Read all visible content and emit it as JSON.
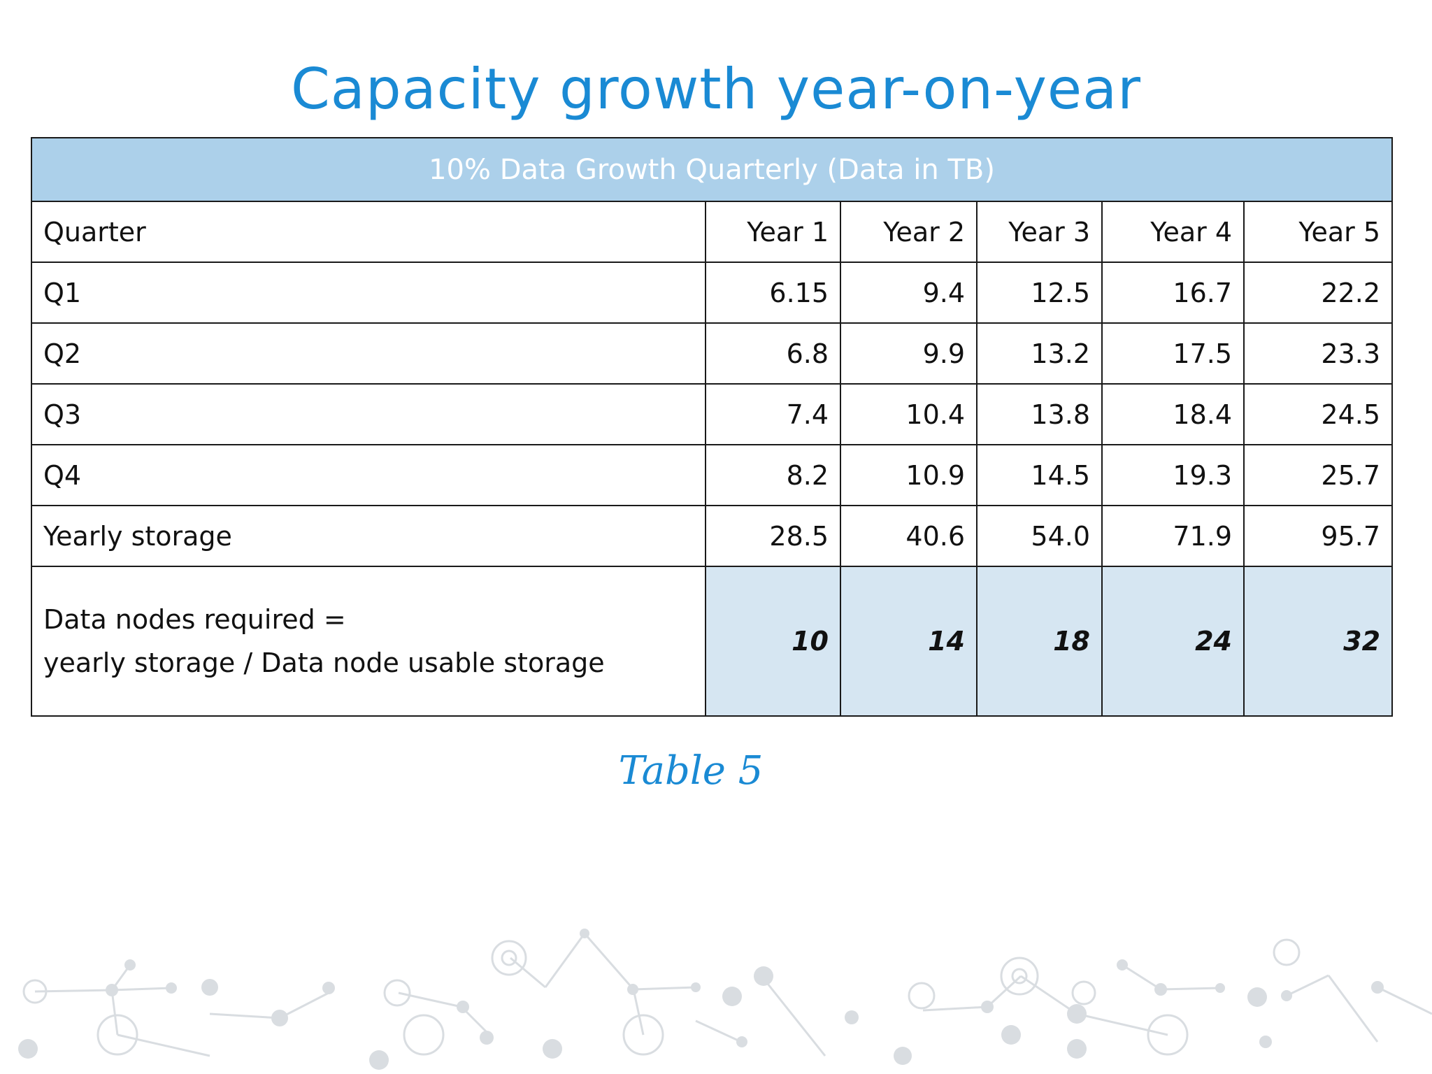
{
  "title": "Capacity growth year-on-year",
  "table": {
    "banner": "10% Data Growth Quarterly (Data in TB)",
    "header": [
      "Quarter",
      "Year 1",
      "Year 2",
      "Year 3",
      "Year 4",
      "Year 5"
    ],
    "rows": [
      {
        "label": "Q1",
        "values": [
          "6.15",
          "9.4",
          "12.5",
          "16.7",
          "22.2"
        ]
      },
      {
        "label": "Q2",
        "values": [
          "6.8",
          "9.9",
          "13.2",
          "17.5",
          "23.3"
        ]
      },
      {
        "label": "Q3",
        "values": [
          "7.4",
          "10.4",
          "13.8",
          "18.4",
          "24.5"
        ]
      },
      {
        "label": "Q4",
        "values": [
          "8.2",
          "10.9",
          "14.5",
          "19.3",
          "25.7"
        ]
      },
      {
        "label": "Yearly storage",
        "values": [
          "28.5",
          "40.6",
          "54.0",
          "71.9",
          "95.7"
        ]
      }
    ],
    "nodes_row": {
      "label_line1": "Data nodes required =",
      "label_line2": "yearly storage / Data node usable storage",
      "values": [
        "10",
        "14",
        "18",
        "24",
        "32"
      ]
    }
  },
  "caption": "Table 5",
  "colors": {
    "title": "#1a8ad4",
    "banner_bg": "#acd0ea",
    "highlight_bg": "#d6e6f2"
  }
}
